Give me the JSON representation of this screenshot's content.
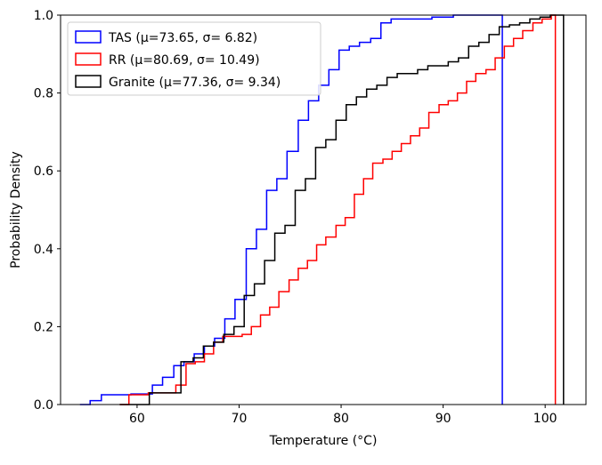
{
  "chart_data": {
    "type": "line",
    "subtype": "step-cdf",
    "title": "",
    "xlabel": "Temperature (°C)",
    "ylabel": "Probability Density",
    "xlim": [
      52.5,
      104.0
    ],
    "ylim": [
      0.0,
      1.0
    ],
    "x_ticks": [
      60,
      70,
      80,
      90,
      100
    ],
    "y_ticks": [
      0.0,
      0.2,
      0.4,
      0.6,
      0.8,
      1.0
    ],
    "x_tick_labels": [
      "60",
      "70",
      "80",
      "90",
      "100"
    ],
    "y_tick_labels": [
      "0.0",
      "0.2",
      "0.4",
      "0.6",
      "0.8",
      "1.0"
    ],
    "legend_position": "upper-left",
    "series": [
      {
        "name": "TAS (μ=73.65, σ= 6.82)",
        "color": "#0000ff",
        "x": [
          54.4,
          55.4,
          56.5,
          59.4,
          61.5,
          62.5,
          63.6,
          64.6,
          65.6,
          66.6,
          67.6,
          68.6,
          69.6,
          70.7,
          71.7,
          72.7,
          73.7,
          74.7,
          75.8,
          76.8,
          77.8,
          78.8,
          79.8,
          80.8,
          81.8,
          82.9,
          83.9,
          84.9,
          88.9,
          91.0,
          95.8
        ],
        "y": [
          0.0,
          0.01,
          0.025,
          0.027,
          0.05,
          0.07,
          0.1,
          0.11,
          0.13,
          0.15,
          0.17,
          0.22,
          0.27,
          0.4,
          0.45,
          0.55,
          0.58,
          0.65,
          0.73,
          0.78,
          0.82,
          0.86,
          0.91,
          0.92,
          0.93,
          0.94,
          0.98,
          0.99,
          0.995,
          1.0,
          0.0
        ]
      },
      {
        "name": "RR (μ=80.69, σ= 10.49)",
        "color": "#ff0000",
        "x": [
          58.3,
          59.2,
          60.1,
          61.1,
          62.0,
          62.9,
          63.8,
          64.8,
          65.7,
          66.6,
          67.5,
          68.4,
          70.3,
          71.2,
          72.1,
          73.0,
          73.9,
          74.9,
          75.8,
          76.7,
          77.6,
          78.5,
          79.5,
          80.4,
          81.3,
          82.2,
          83.1,
          84.1,
          85.0,
          85.9,
          86.8,
          87.7,
          88.6,
          89.6,
          90.5,
          91.4,
          92.3,
          93.2,
          94.2,
          95.1,
          96.0,
          96.9,
          97.8,
          98.8,
          99.7,
          100.6,
          101.0
        ],
        "y": [
          0.0,
          0.025,
          0.025,
          0.03,
          0.03,
          0.03,
          0.05,
          0.105,
          0.11,
          0.13,
          0.16,
          0.175,
          0.18,
          0.2,
          0.23,
          0.25,
          0.29,
          0.32,
          0.35,
          0.37,
          0.41,
          0.43,
          0.46,
          0.48,
          0.54,
          0.58,
          0.62,
          0.63,
          0.65,
          0.67,
          0.69,
          0.71,
          0.75,
          0.77,
          0.78,
          0.8,
          0.83,
          0.85,
          0.86,
          0.89,
          0.92,
          0.94,
          0.96,
          0.98,
          0.99,
          1.0,
          0.0
        ]
      },
      {
        "name": "Granite (μ=77.36, σ= 9.34)",
        "color": "#000000",
        "x": [
          58.3,
          61.2,
          64.3,
          65.5,
          66.5,
          67.5,
          68.5,
          69.5,
          70.5,
          71.5,
          72.5,
          73.5,
          74.5,
          75.5,
          76.5,
          77.5,
          78.5,
          79.5,
          80.5,
          81.5,
          82.5,
          83.5,
          84.5,
          85.5,
          86.5,
          87.5,
          88.5,
          89.5,
          90.5,
          91.5,
          92.5,
          93.5,
          94.5,
          95.5,
          96.5,
          97.5,
          98.5,
          99.5,
          100.5,
          101.8
        ],
        "y": [
          0.0,
          0.03,
          0.11,
          0.12,
          0.15,
          0.16,
          0.18,
          0.2,
          0.28,
          0.31,
          0.37,
          0.44,
          0.46,
          0.55,
          0.58,
          0.66,
          0.68,
          0.73,
          0.77,
          0.79,
          0.81,
          0.82,
          0.84,
          0.85,
          0.85,
          0.86,
          0.87,
          0.87,
          0.88,
          0.89,
          0.92,
          0.93,
          0.95,
          0.97,
          0.975,
          0.98,
          0.99,
          0.995,
          1.0,
          0.0
        ]
      }
    ]
  }
}
